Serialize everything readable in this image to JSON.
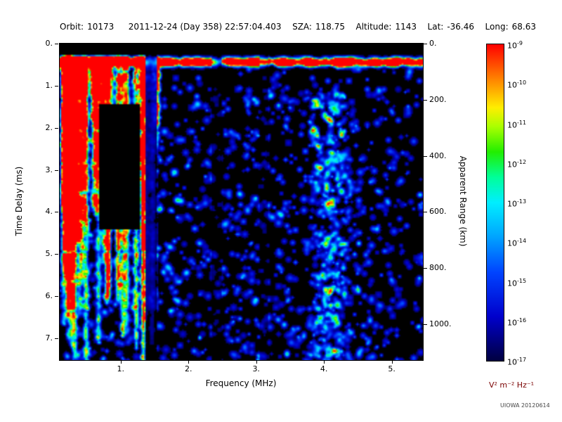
{
  "header": {
    "items": [
      {
        "label": "Orbit:",
        "value": "10173"
      },
      {
        "label": "",
        "value": "2011-12-24 (Day 358) 22:57:04.403"
      },
      {
        "label": "SZA:",
        "value": "118.75"
      },
      {
        "label": "Altitude:",
        "value": "1143"
      },
      {
        "label": "Lat:",
        "value": "-36.46"
      },
      {
        "label": "Long:",
        "value": "68.63"
      }
    ]
  },
  "chart_data": {
    "type": "heatmap",
    "title": "",
    "xlabel": "Frequency (MHz)",
    "ylabel": "Time Delay (ms)",
    "y2label": "Apparent Range (km)",
    "x_axis": {
      "min": 0.1,
      "max": 5.45,
      "ticks": [
        {
          "v": 1,
          "label": "1."
        },
        {
          "v": 2,
          "label": "2."
        },
        {
          "v": 3,
          "label": "3."
        },
        {
          "v": 4,
          "label": "4."
        },
        {
          "v": 5,
          "label": "5."
        }
      ]
    },
    "y_axis": {
      "min": 0,
      "max": 7.5,
      "ticks": [
        {
          "v": 0,
          "label": "0."
        },
        {
          "v": 1,
          "label": "1."
        },
        {
          "v": 2,
          "label": "2."
        },
        {
          "v": 3,
          "label": "3."
        },
        {
          "v": 4,
          "label": "4."
        },
        {
          "v": 5,
          "label": "5."
        },
        {
          "v": 6,
          "label": "6."
        },
        {
          "v": 7,
          "label": "7."
        }
      ]
    },
    "y2_axis": {
      "min": 0,
      "max": 1125,
      "ticks": [
        {
          "v": 0,
          "label": "0."
        },
        {
          "v": 200,
          "label": "200."
        },
        {
          "v": 400,
          "label": "400."
        },
        {
          "v": 600,
          "label": "600."
        },
        {
          "v": 800,
          "label": "800."
        },
        {
          "v": 1000,
          "label": "1000."
        }
      ]
    },
    "colorbar": {
      "scale": "log",
      "min": "1e-17",
      "max": "1e-9",
      "unit": "V² m⁻² Hz⁻¹",
      "tick_exponents": [
        "-9",
        "-10",
        "-11",
        "-12",
        "-13",
        "-14",
        "-15",
        "-16",
        "-17"
      ]
    },
    "colormap": [
      [
        0.0,
        "#000040"
      ],
      [
        0.14,
        "#0000cc"
      ],
      [
        0.28,
        "#0044ff"
      ],
      [
        0.4,
        "#00aaff"
      ],
      [
        0.5,
        "#00eeff"
      ],
      [
        0.58,
        "#00ff99"
      ],
      [
        0.66,
        "#22ee00"
      ],
      [
        0.74,
        "#aaff00"
      ],
      [
        0.8,
        "#ffee00"
      ],
      [
        0.9,
        "#ff7700"
      ],
      [
        1.0,
        "#ff0000"
      ]
    ],
    "background": "#000000",
    "features": {
      "seed": 1337,
      "band_time_ms": 0.42,
      "top_black_above_ms": 0.28,
      "stripe_region_max_mhz": 1.55,
      "stripe_count": 58,
      "bright_stripe_mhz": 1.32,
      "blackout_box": {
        "f0": 0.7,
        "f1": 1.27,
        "t0": 1.45,
        "t1": 4.4
      },
      "dark_lanes": [
        {
          "f": 1.45,
          "w": 0.14,
          "k": 0.12
        },
        {
          "f": 2.42,
          "w": 0.12,
          "k": 0.35
        },
        {
          "f": 3.1,
          "w": 0.1,
          "k": 0.45
        }
      ],
      "speckle_count": 2600,
      "cluster_extra": 380,
      "dense_cluster_mhz": [
        3.85,
        4.3
      ]
    }
  },
  "credit": "UIOWA 20120614"
}
